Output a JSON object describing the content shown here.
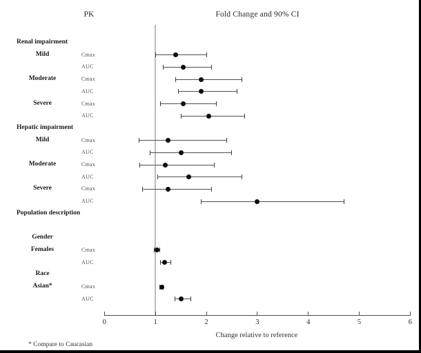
{
  "titles": {
    "left": "PK",
    "right": "Fold Change and 90% CI"
  },
  "footnote": "* Compare to Caucasian",
  "colors": {
    "dot": "#0d0d0d",
    "error_bar": "#4d4d4d",
    "reference_line": "#bcbcbc",
    "axis": "#4d4d4d",
    "frame": "#000000"
  },
  "chart_data": {
    "type": "scatter",
    "subtype": "forest-plot-horizontal-ci",
    "title": "Fold Change and 90% CI",
    "column_header_left": "PK",
    "xlabel": "Change relative to reference",
    "xlim": [
      0,
      6
    ],
    "x_ticks": [
      0,
      1,
      2,
      3,
      4,
      5,
      6
    ],
    "reference_x": 1,
    "grid": false,
    "legend": false,
    "rows": [
      {
        "kind": "heading",
        "label": "Renal impairment"
      },
      {
        "kind": "data",
        "group": "Mild",
        "param": "Cmax",
        "value": 1.4,
        "ci_low": 1.0,
        "ci_high": 2.0
      },
      {
        "kind": "data",
        "group": "",
        "param": "AUC",
        "value": 1.55,
        "ci_low": 1.15,
        "ci_high": 2.1
      },
      {
        "kind": "data",
        "group": "Moderate",
        "param": "Cmax",
        "value": 1.9,
        "ci_low": 1.4,
        "ci_high": 2.7
      },
      {
        "kind": "data",
        "group": "",
        "param": "AUC",
        "value": 1.9,
        "ci_low": 1.45,
        "ci_high": 2.6
      },
      {
        "kind": "data",
        "group": "Severe",
        "param": "Cmax",
        "value": 1.55,
        "ci_low": 1.1,
        "ci_high": 2.2
      },
      {
        "kind": "data",
        "group": "",
        "param": "AUC",
        "value": 2.05,
        "ci_low": 1.5,
        "ci_high": 2.75
      },
      {
        "kind": "heading",
        "label": "Hepatic impairment"
      },
      {
        "kind": "data",
        "group": "Mild",
        "param": "Cmax",
        "value": 1.25,
        "ci_low": 0.68,
        "ci_high": 2.4
      },
      {
        "kind": "data",
        "group": "",
        "param": "AUC",
        "value": 1.5,
        "ci_low": 0.9,
        "ci_high": 2.5
      },
      {
        "kind": "data",
        "group": "Moderate",
        "param": "Cmax",
        "value": 1.2,
        "ci_low": 0.7,
        "ci_high": 2.15
      },
      {
        "kind": "data",
        "group": "",
        "param": "AUC",
        "value": 1.65,
        "ci_low": 1.05,
        "ci_high": 2.7
      },
      {
        "kind": "data",
        "group": "Severe",
        "param": "Cmax",
        "value": 1.25,
        "ci_low": 0.75,
        "ci_high": 2.1
      },
      {
        "kind": "data",
        "group": "",
        "param": "AUC",
        "value": 3.0,
        "ci_low": 1.9,
        "ci_high": 4.7
      },
      {
        "kind": "heading",
        "label": "Population description"
      },
      {
        "kind": "spacer"
      },
      {
        "kind": "subheading",
        "label": "Gender"
      },
      {
        "kind": "data",
        "group": "Females",
        "param": "Cmax",
        "value": 1.03,
        "ci_low": 0.98,
        "ci_high": 1.08
      },
      {
        "kind": "data",
        "group": "",
        "param": "AUC",
        "value": 1.18,
        "ci_low": 1.1,
        "ci_high": 1.3
      },
      {
        "kind": "subheading",
        "label": "Race"
      },
      {
        "kind": "data",
        "group": "Asian*",
        "param": "Cmax",
        "value": 1.12,
        "ci_low": 1.08,
        "ci_high": 1.16
      },
      {
        "kind": "data",
        "group": "",
        "param": "AUC",
        "value": 1.5,
        "ci_low": 1.38,
        "ci_high": 1.7
      }
    ]
  }
}
